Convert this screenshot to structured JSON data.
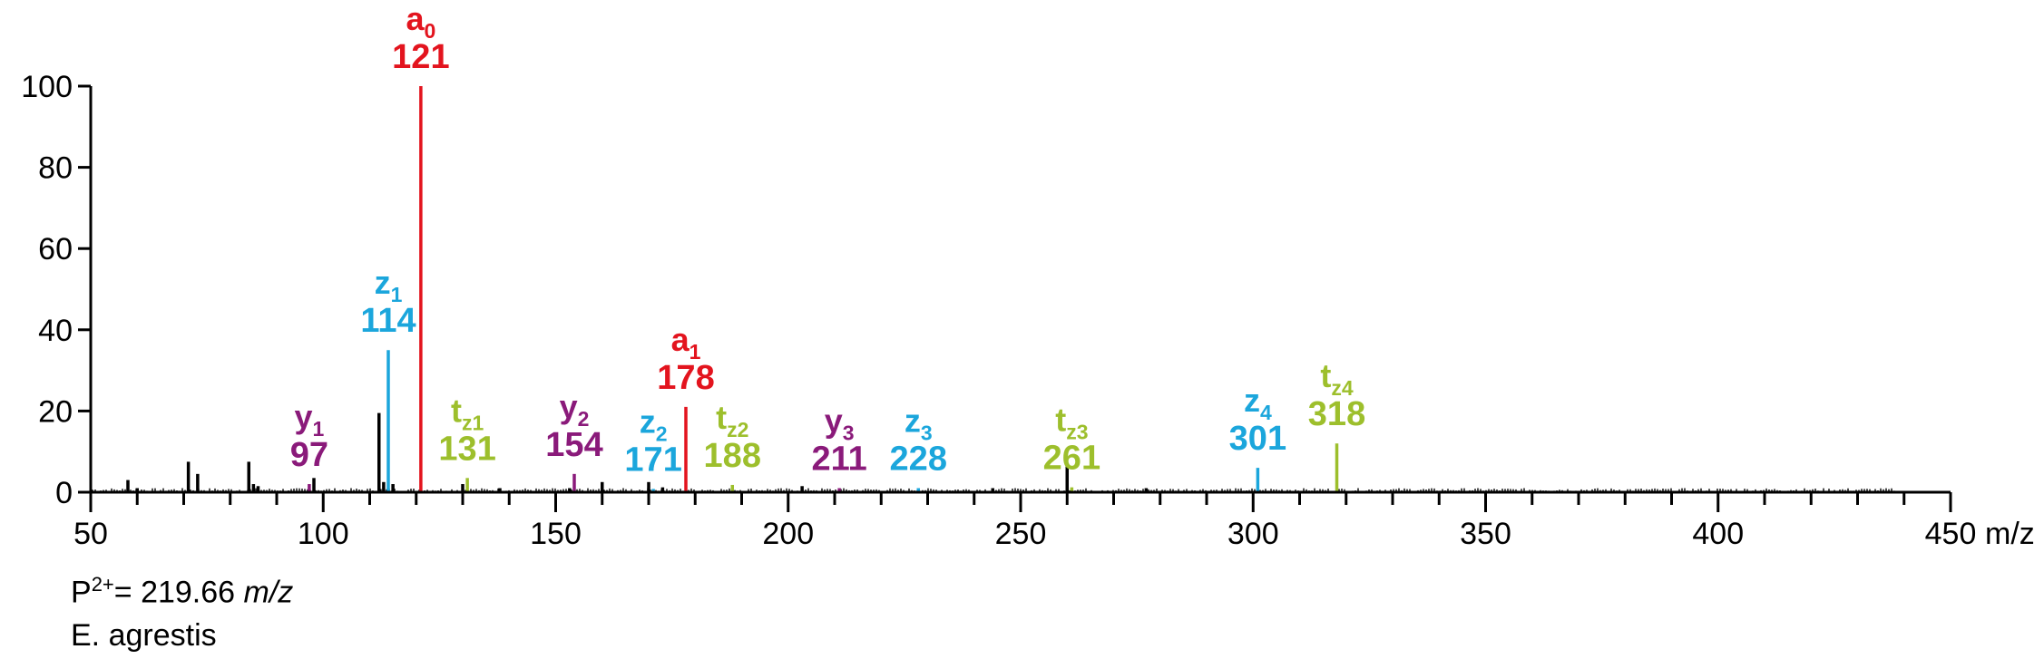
{
  "colors": {
    "a": "#e3141e",
    "z": "#1ba6dc",
    "y": "#8a1a7a",
    "t": "#9dbf2c",
    "other": "#000000"
  },
  "chart_data": {
    "type": "bar",
    "title": "",
    "xlabel": "m/z",
    "ylabel": "",
    "xlim": [
      50,
      450
    ],
    "ylim": [
      0,
      100
    ],
    "x_ticks": [
      50,
      100,
      150,
      200,
      250,
      300,
      350,
      400,
      450
    ],
    "y_ticks": [
      0,
      20,
      40,
      60,
      80,
      100
    ],
    "annotated_peaks": [
      {
        "name": "a",
        "sub": "0",
        "mz": 121,
        "label": "121",
        "intensity": 100,
        "color": "a"
      },
      {
        "name": "z",
        "sub": "1",
        "mz": 114,
        "label": "114",
        "intensity": 35,
        "color": "z"
      },
      {
        "name": "a",
        "sub": "1",
        "mz": 178,
        "label": "178",
        "intensity": 21,
        "color": "a"
      },
      {
        "name": "y",
        "sub": "1",
        "mz": 97,
        "label": "97",
        "intensity": 2,
        "color": "y"
      },
      {
        "name": "t",
        "sub": "z1",
        "mz": 131,
        "label": "131",
        "intensity": 3.5,
        "color": "t"
      },
      {
        "name": "y",
        "sub": "2",
        "mz": 154,
        "label": "154",
        "intensity": 4.5,
        "color": "y"
      },
      {
        "name": "z",
        "sub": "2",
        "mz": 171,
        "label": "171",
        "intensity": 0.8,
        "color": "z"
      },
      {
        "name": "t",
        "sub": "z2",
        "mz": 188,
        "label": "188",
        "intensity": 1.8,
        "color": "t"
      },
      {
        "name": "y",
        "sub": "3",
        "mz": 211,
        "label": "211",
        "intensity": 1,
        "color": "y"
      },
      {
        "name": "z",
        "sub": "3",
        "mz": 228,
        "label": "228",
        "intensity": 1,
        "color": "z"
      },
      {
        "name": "t",
        "sub": "z3",
        "mz": 261,
        "label": "261",
        "intensity": 1.2,
        "color": "t"
      },
      {
        "name": "z",
        "sub": "4",
        "mz": 301,
        "label": "301",
        "intensity": 6,
        "color": "z"
      },
      {
        "name": "t",
        "sub": "z4",
        "mz": 318,
        "label": "318",
        "intensity": 12,
        "color": "t"
      }
    ],
    "other_peaks": [
      {
        "mz": 58,
        "intensity": 3
      },
      {
        "mz": 60,
        "intensity": 1
      },
      {
        "mz": 71,
        "intensity": 7.5
      },
      {
        "mz": 73,
        "intensity": 4.5
      },
      {
        "mz": 84,
        "intensity": 7.5
      },
      {
        "mz": 85,
        "intensity": 2
      },
      {
        "mz": 86,
        "intensity": 1.5
      },
      {
        "mz": 98,
        "intensity": 3.5
      },
      {
        "mz": 112,
        "intensity": 19.5
      },
      {
        "mz": 113,
        "intensity": 2.5
      },
      {
        "mz": 115,
        "intensity": 2
      },
      {
        "mz": 130,
        "intensity": 2
      },
      {
        "mz": 138,
        "intensity": 1
      },
      {
        "mz": 153,
        "intensity": 1
      },
      {
        "mz": 160,
        "intensity": 2.5
      },
      {
        "mz": 170,
        "intensity": 2.5
      },
      {
        "mz": 173,
        "intensity": 1.2
      },
      {
        "mz": 203,
        "intensity": 1.5
      },
      {
        "mz": 244,
        "intensity": 1
      },
      {
        "mz": 260,
        "intensity": 6.5
      },
      {
        "mz": 277,
        "intensity": 1
      }
    ]
  },
  "footer": {
    "precursor_prefix": "P",
    "precursor_charge": "2+",
    "precursor_value": "= 219.66 ",
    "precursor_unit": "m/z",
    "species": "E. agrestis"
  }
}
